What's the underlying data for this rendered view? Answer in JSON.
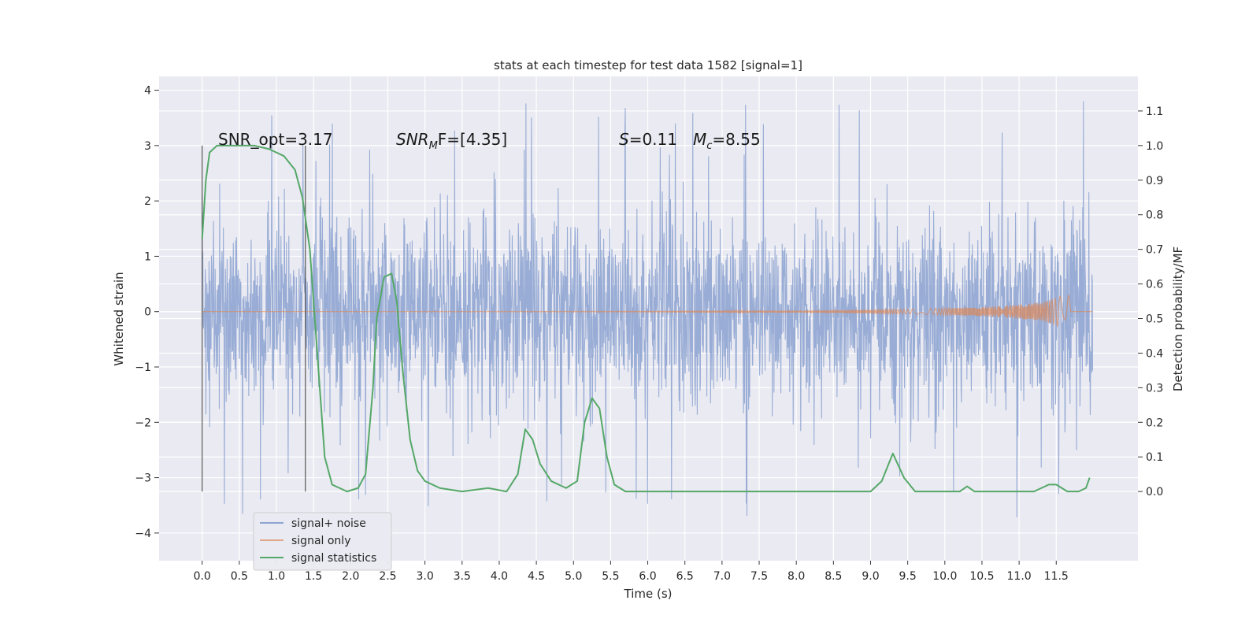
{
  "chart_data": {
    "type": "line",
    "title": "stats at each timestep for test data 1582 [signal=1]",
    "xlabel": "Time (s)",
    "ylabel_left": "Whitened strain",
    "ylabel_right": "Detection probability/MF",
    "xlim": [
      -0.58,
      12.6
    ],
    "ylim_left": [
      -4.5,
      4.25
    ],
    "ylim_right": [
      -0.2,
      1.2
    ],
    "x_ticks": [
      "0.0",
      "0.5",
      "1.0",
      "1.5",
      "2.0",
      "2.5",
      "3.0",
      "3.5",
      "4.0",
      "4.5",
      "5.0",
      "5.5",
      "6.0",
      "6.5",
      "7.0",
      "7.5",
      "8.0",
      "8.5",
      "9.0",
      "9.5",
      "10.0",
      "10.5",
      "11.0",
      "11.5"
    ],
    "y_ticks_left": [
      "4",
      "3",
      "2",
      "1",
      "0",
      "−1",
      "−2",
      "−3",
      "−4"
    ],
    "y_ticks_right": [
      "1.1",
      "1.0",
      "0.9",
      "0.8",
      "0.7",
      "0.6",
      "0.5",
      "0.4",
      "0.3",
      "0.2",
      "0.1",
      "0.0"
    ],
    "grid": true,
    "legend_position": "lower-left",
    "legend": [
      "signal+ noise",
      "signal only",
      "signal statistics"
    ],
    "colors": {
      "noise": "#8fa5d2",
      "signal": "#dd8452",
      "stats": "#55a868",
      "plot_bg": "#eaeaf2",
      "grid": "#ffffff",
      "vline": "#555555"
    },
    "annotations": {
      "snr_opt": "SNR_opt=3.17",
      "snr_mf_label": "SNR",
      "snr_mf_sub": "M",
      "snr_mf_rest": "F=[4.35]",
      "s_label": "S",
      "s_rest": "=0.11",
      "mc_label": "M",
      "mc_sub": "c",
      "mc_rest": "=8.55"
    },
    "vlines_x": [
      0.0,
      1.39
    ],
    "time_range": [
      0.0,
      11.99
    ],
    "noise_envelope": {
      "upper_typical": [
        1.8,
        2.6
      ],
      "lower_typical": [
        -1.8,
        -2.6
      ],
      "upper_peaks": [
        3.87,
        3.85,
        3.83
      ],
      "lower_peaks": [
        -4.1,
        -3.85,
        -3.7
      ]
    },
    "signal_only": {
      "amplitude_envelope": [
        [
          0.0,
          0.0
        ],
        [
          7.0,
          0.01
        ],
        [
          9.0,
          0.03
        ],
        [
          10.5,
          0.08
        ],
        [
          11.3,
          0.16
        ],
        [
          11.6,
          0.3
        ],
        [
          11.65,
          0.5
        ],
        [
          11.7,
          0.0
        ],
        [
          11.99,
          0.0
        ]
      ]
    },
    "signal_statistics": {
      "x": [
        0.0,
        0.05,
        0.1,
        0.2,
        0.3,
        0.5,
        0.7,
        0.9,
        1.1,
        1.25,
        1.35,
        1.45,
        1.55,
        1.65,
        1.75,
        1.85,
        1.95,
        2.1,
        2.2,
        2.3,
        2.35,
        2.45,
        2.55,
        2.62,
        2.7,
        2.8,
        2.9,
        3.0,
        3.2,
        3.5,
        3.85,
        4.1,
        4.25,
        4.35,
        4.45,
        4.55,
        4.7,
        4.9,
        5.05,
        5.15,
        5.25,
        5.35,
        5.45,
        5.55,
        5.7,
        6.0,
        7.0,
        8.0,
        9.0,
        9.15,
        9.3,
        9.45,
        9.6,
        10.0,
        10.2,
        10.3,
        10.4,
        10.6,
        11.2,
        11.4,
        11.5,
        11.65,
        11.8,
        11.9,
        11.95
      ],
      "values": [
        0.73,
        0.9,
        0.98,
        1.0,
        1.0,
        1.0,
        1.0,
        0.99,
        0.97,
        0.93,
        0.85,
        0.7,
        0.4,
        0.1,
        0.02,
        0.01,
        0.0,
        0.01,
        0.05,
        0.3,
        0.5,
        0.62,
        0.63,
        0.55,
        0.35,
        0.15,
        0.06,
        0.03,
        0.01,
        0.0,
        0.01,
        0.0,
        0.05,
        0.18,
        0.15,
        0.08,
        0.03,
        0.01,
        0.03,
        0.2,
        0.27,
        0.24,
        0.1,
        0.02,
        0.0,
        0.0,
        0.0,
        0.0,
        0.0,
        0.03,
        0.11,
        0.04,
        0.0,
        0.0,
        0.0,
        0.015,
        0.0,
        0.0,
        0.0,
        0.02,
        0.02,
        0.0,
        0.0,
        0.01,
        0.04
      ]
    }
  }
}
